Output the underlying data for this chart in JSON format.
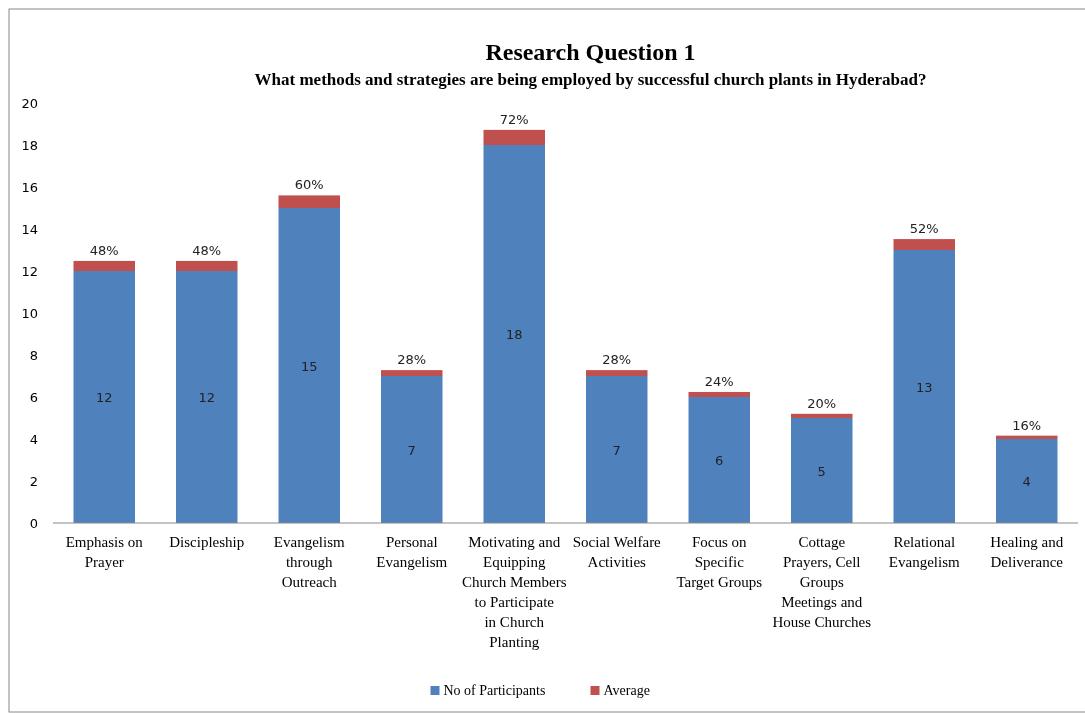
{
  "chart_data": {
    "type": "bar",
    "stacked": true,
    "title": "Research Question 1",
    "subtitle": "What methods and strategies are being employed by successful church plants in Hyderabad?",
    "categories": [
      "Emphasis on Prayer",
      "Discipleship",
      "Evangelism through Outreach",
      "Personal Evangelism",
      "Motivating and Equipping Church Members to Participate in Church Planting",
      "Social Welfare Activities",
      "Focus on Specific Target Groups",
      "Cottage Prayers, Cell Groups Meetings and House Churches",
      "Relational Evangelism",
      "Healing and Deliverance"
    ],
    "series": [
      {
        "name": "No of Participants",
        "color": "#4f81bd",
        "values": [
          12,
          12,
          15,
          7,
          18,
          7,
          6,
          5,
          13,
          4
        ],
        "value_labels": [
          "12",
          "12",
          "15",
          "7",
          "18",
          "7",
          "6",
          "5",
          "13",
          "4"
        ]
      },
      {
        "name": "Average",
        "color": "#c0504d",
        "values": [
          0.48,
          0.48,
          0.6,
          0.28,
          0.72,
          0.28,
          0.24,
          0.2,
          0.52,
          0.16
        ],
        "value_labels": [
          "48%",
          "48%",
          "60%",
          "28%",
          "72%",
          "28%",
          "24%",
          "20%",
          "52%",
          "16%"
        ]
      }
    ],
    "ylim": [
      0,
      20
    ],
    "yticks": [
      0,
      2,
      4,
      6,
      8,
      10,
      12,
      14,
      16,
      18,
      20
    ],
    "grid": false,
    "legend": "bottom"
  }
}
